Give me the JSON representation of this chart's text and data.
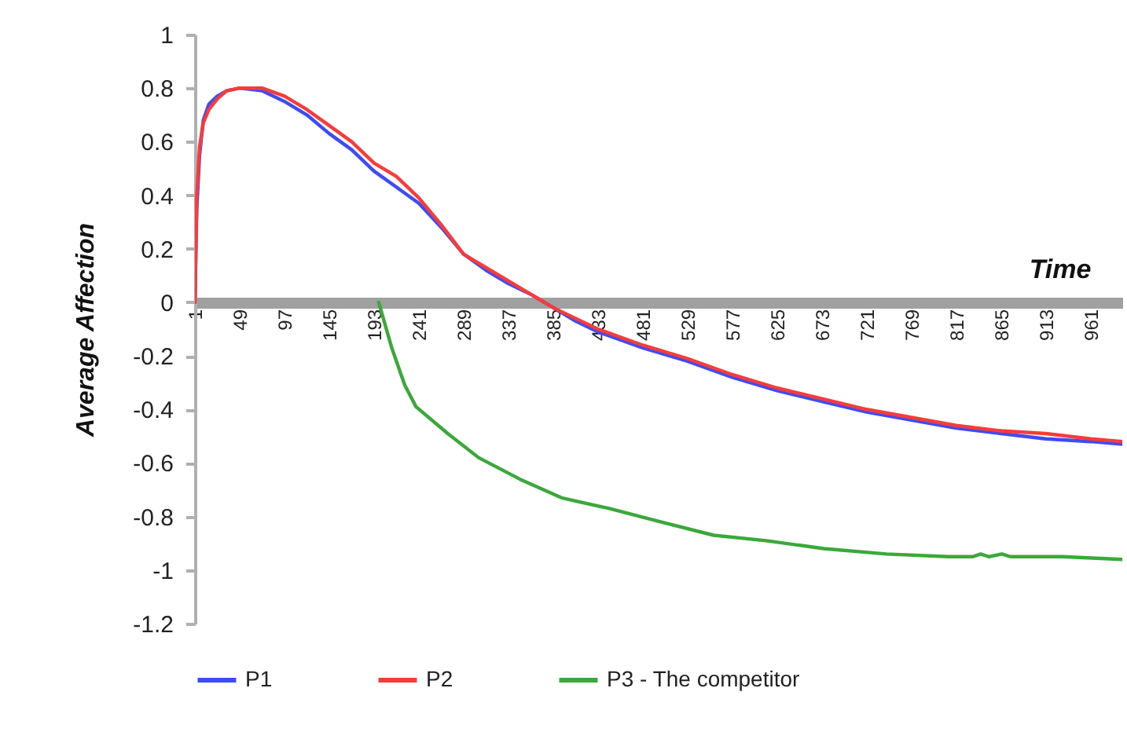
{
  "chart_data": {
    "type": "line",
    "xlabel": "Time",
    "ylabel": "Average Affection",
    "xlim": [
      1,
      995
    ],
    "ylim": [
      -1.2,
      1
    ],
    "xticks": [
      1,
      49,
      97,
      145,
      193,
      241,
      289,
      337,
      385,
      433,
      481,
      529,
      577,
      625,
      673,
      721,
      769,
      817,
      865,
      913,
      961
    ],
    "yticks": [
      -1.2,
      -1,
      -0.8,
      -0.6,
      -0.4,
      -0.2,
      0,
      0.2,
      0.4,
      0.6,
      0.8,
      1
    ],
    "grid": false,
    "legend": "bottom",
    "series": [
      {
        "name": "P1",
        "color": "#3f4cf5",
        "x": [
          1,
          3,
          6,
          10,
          16,
          25,
          35,
          49,
          73,
          97,
          121,
          145,
          169,
          193,
          217,
          241,
          265,
          289,
          313,
          337,
          361,
          385,
          409,
          433,
          481,
          529,
          577,
          625,
          673,
          721,
          769,
          817,
          865,
          913,
          961,
          995
        ],
        "values": [
          0,
          0.35,
          0.55,
          0.68,
          0.74,
          0.77,
          0.79,
          0.8,
          0.79,
          0.75,
          0.7,
          0.63,
          0.57,
          0.49,
          0.43,
          0.37,
          0.28,
          0.18,
          0.12,
          0.07,
          0.03,
          -0.02,
          -0.07,
          -0.11,
          -0.17,
          -0.22,
          -0.28,
          -0.33,
          -0.37,
          -0.41,
          -0.44,
          -0.47,
          -0.49,
          -0.51,
          -0.52,
          -0.53
        ]
      },
      {
        "name": "P2",
        "color": "#f83c3c",
        "x": [
          1,
          3,
          6,
          10,
          16,
          25,
          35,
          49,
          73,
          97,
          121,
          145,
          169,
          193,
          217,
          241,
          265,
          289,
          313,
          337,
          361,
          385,
          409,
          433,
          481,
          529,
          577,
          625,
          673,
          721,
          769,
          817,
          865,
          913,
          961,
          995
        ],
        "values": [
          0,
          0.4,
          0.58,
          0.67,
          0.72,
          0.76,
          0.79,
          0.8,
          0.8,
          0.77,
          0.72,
          0.66,
          0.6,
          0.52,
          0.47,
          0.39,
          0.29,
          0.18,
          0.13,
          0.08,
          0.03,
          -0.02,
          -0.06,
          -0.1,
          -0.16,
          -0.21,
          -0.27,
          -0.32,
          -0.36,
          -0.4,
          -0.43,
          -0.46,
          -0.48,
          -0.49,
          -0.51,
          -0.52
        ]
      },
      {
        "name": "P3 - The competitor",
        "color": "#3aa83a",
        "x": [
          198,
          212,
          226,
          238,
          272,
          305,
          349,
          394,
          445,
          500,
          557,
          613,
          675,
          742,
          809,
          835,
          843,
          852,
          866,
          875,
          930,
          995
        ],
        "values": [
          0,
          -0.17,
          -0.31,
          -0.39,
          -0.49,
          -0.58,
          -0.66,
          -0.73,
          -0.77,
          -0.82,
          -0.87,
          -0.89,
          -0.92,
          -0.94,
          -0.95,
          -0.95,
          -0.94,
          -0.95,
          -0.94,
          -0.95,
          -0.95,
          -0.96
        ]
      }
    ]
  }
}
